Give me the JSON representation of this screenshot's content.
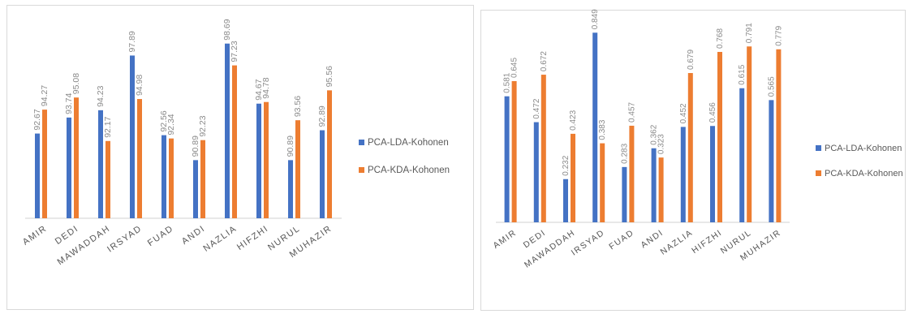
{
  "chart_data": [
    {
      "type": "bar",
      "categories": [
        "AMIR",
        "DEDI",
        "MAWADDAH",
        "IRSYAD",
        "FUAD",
        "ANDI",
        "NAZLIA",
        "HIFZHI",
        "NURUL",
        "MUHAZIR"
      ],
      "series": [
        {
          "name": "PCA-LDA-Kohonen",
          "values": [
            92.67,
            93.74,
            94.23,
            97.89,
            92.56,
            90.89,
            98.69,
            94.67,
            90.89,
            92.89
          ]
        },
        {
          "name": "PCA-KDA-Kohonen",
          "values": [
            94.27,
            95.08,
            92.17,
            94.98,
            92.34,
            92.23,
            97.23,
            94.78,
            93.56,
            95.56
          ]
        }
      ],
      "value_labels": [
        [
          "92.67",
          "93.74",
          "94.23",
          "97.89",
          "92.56",
          "90.89",
          "98.69",
          "94.67",
          "90.89",
          "92.89"
        ],
        [
          "94.27",
          "95.08",
          "92.17",
          "94.98",
          "92.34",
          "92.23",
          "97.23",
          "94.78",
          "93.56",
          "95.56"
        ]
      ],
      "ylim": [
        87,
        99
      ],
      "grid": false,
      "legend_position": "right",
      "colors": [
        "#4472c4",
        "#ed7d31"
      ]
    },
    {
      "type": "bar",
      "categories": [
        "AMIR",
        "DEDI",
        "MAWADDAH",
        "IRSYAD",
        "FUAD",
        "ANDI",
        "NAZLIA",
        "HIFZHI",
        "NURUL",
        "MUHAZIR"
      ],
      "series": [
        {
          "name": "PCA-LDA-Kohonen",
          "values": [
            0.581,
            0.472,
            0.232,
            0.849,
            0.283,
            0.362,
            0.452,
            0.456,
            0.615,
            0.565
          ]
        },
        {
          "name": "PCA-KDA-Kohonen",
          "values": [
            0.645,
            0.672,
            0.423,
            0.383,
            0.457,
            0.323,
            0.679,
            0.768,
            0.791,
            0.779
          ]
        }
      ],
      "value_labels": [
        [
          "0.581",
          "0.472",
          "0.232",
          "0.849",
          "0.283",
          "0.362",
          "0.452",
          "0.456",
          "0.615",
          "0.565"
        ],
        [
          "0.645",
          "0.672",
          "0.423",
          "0.383",
          "0.457",
          "0.323",
          "0.679",
          "0.768",
          "0.791",
          "0.779"
        ]
      ],
      "ylim": [
        0.05,
        0.85
      ],
      "grid": false,
      "legend_position": "right",
      "colors": [
        "#4472c4",
        "#ed7d31"
      ]
    }
  ]
}
